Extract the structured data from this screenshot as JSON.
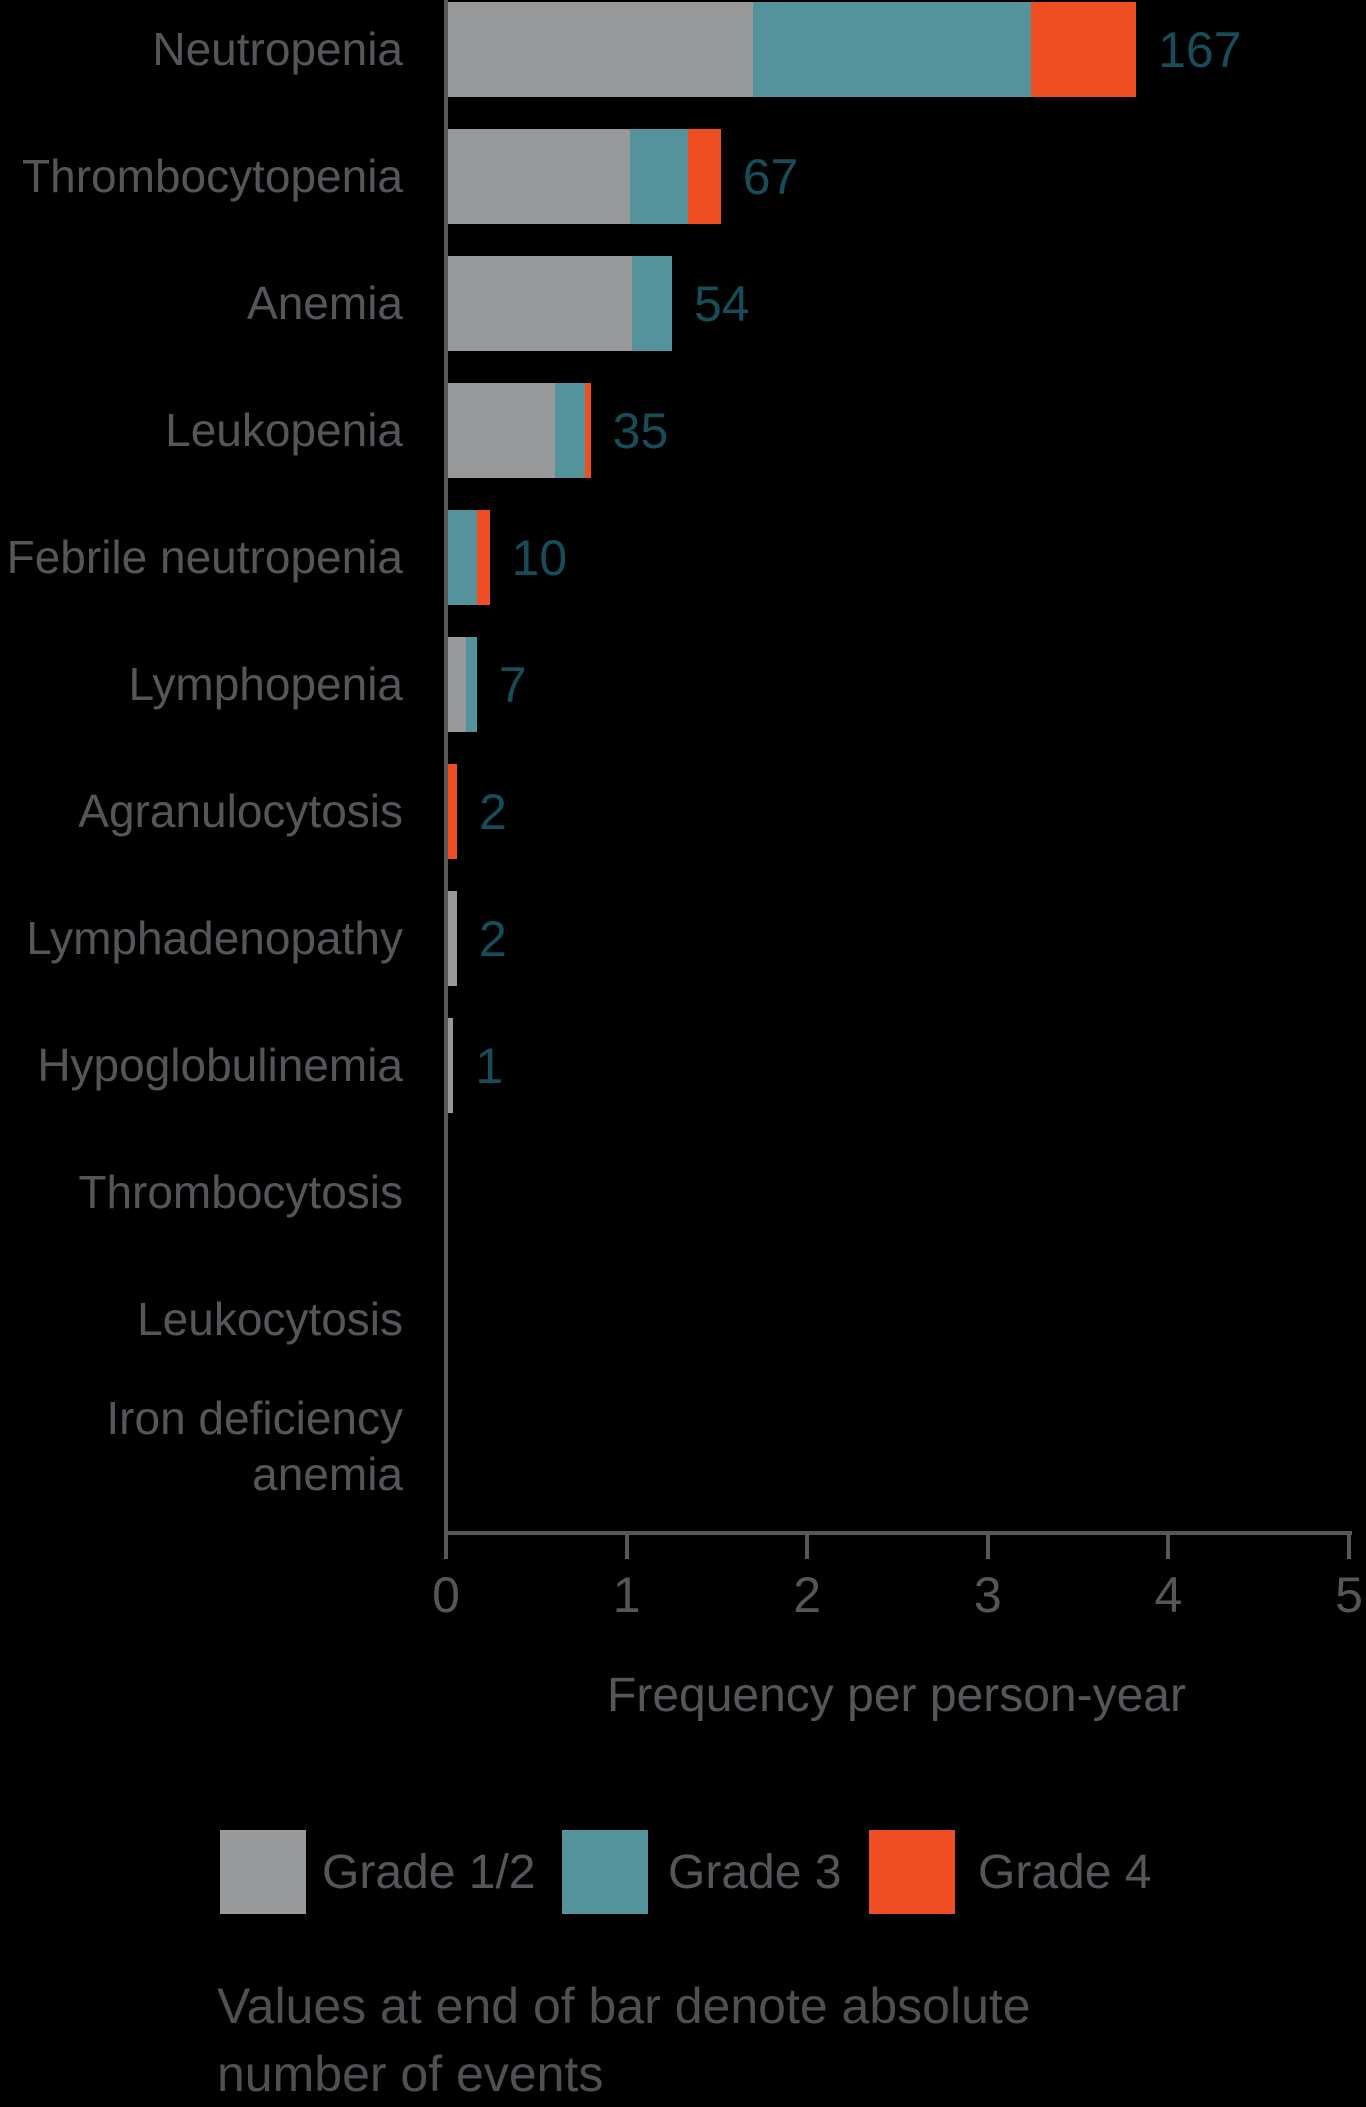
{
  "chart_data": {
    "type": "bar",
    "orientation": "horizontal",
    "stacked": true,
    "grid": false,
    "title": "",
    "xlabel": "Frequency per person-year",
    "xlim": [
      0,
      5
    ],
    "xticks": [
      "0",
      "1",
      "2",
      "3",
      "4",
      "5"
    ],
    "legend_position": "bottom",
    "categories": [
      "Neutropenia",
      "Thrombocytopenia",
      "Anemia",
      "Leukopenia",
      "Febrile neutropenia",
      "Lymphopenia",
      "Agranulocytosis",
      "Lymphadenopathy",
      "Hypoglobulinemia",
      "Thrombocytosis",
      "Leukocytosis",
      "Iron deficiency\nanemia"
    ],
    "series": [
      {
        "name": "Grade 1/2",
        "color": "#97999B",
        "values": [
          1.69,
          1.01,
          1.02,
          0.59,
          0,
          0.1,
          0,
          0.05,
          0.03,
          0,
          0,
          0
        ]
      },
      {
        "name": "Grade 3",
        "color": "#54939C",
        "values": [
          1.54,
          0.32,
          0.22,
          0.17,
          0.16,
          0.06,
          0,
          0,
          0,
          0,
          0,
          0
        ]
      },
      {
        "name": "Grade 4",
        "color": "#EF4E23",
        "values": [
          0.58,
          0.18,
          0,
          0.03,
          0.07,
          0,
          0.05,
          0,
          0,
          0,
          0,
          0
        ]
      }
    ],
    "event_counts": [
      167,
      67,
      54,
      35,
      10,
      7,
      2,
      2,
      1,
      null,
      null,
      null
    ],
    "annotation": "Values at end of bar denote absolute number of events"
  },
  "footnote": {
    "lines": [
      "Values at end of bar denote absolute",
      "number of events"
    ]
  },
  "colors": {
    "background": "#000000",
    "grade_1_2": "#97999B",
    "grade_3": "#54939C",
    "grade_4": "#EF4E23",
    "value_label_text": "#174C59",
    "axis_text": "#54565A",
    "axis_line": "#55575B"
  }
}
